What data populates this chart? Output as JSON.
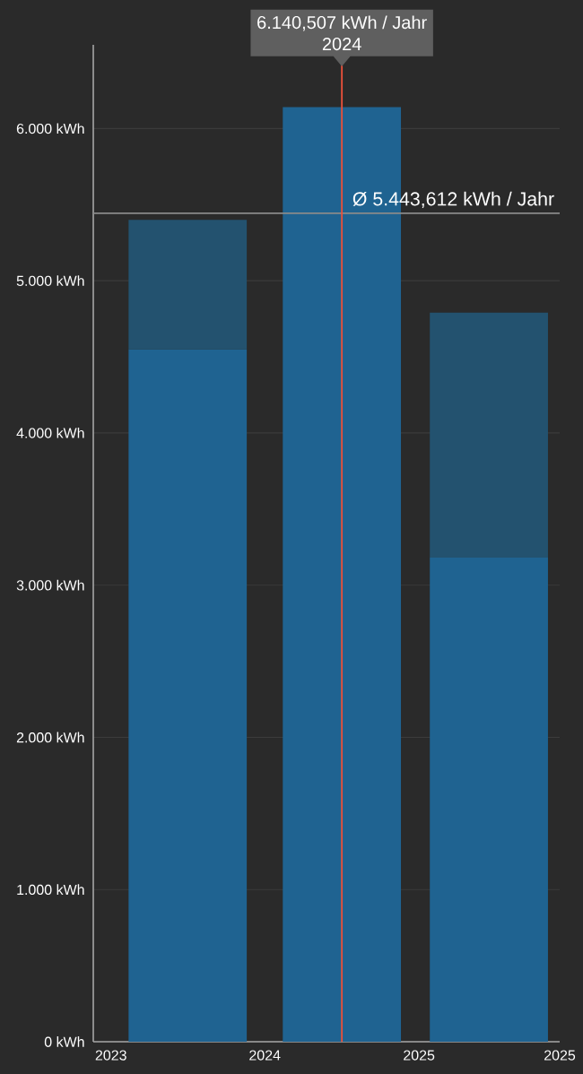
{
  "chart_data": {
    "type": "bar",
    "stacked": true,
    "x": [
      "2023-07-02",
      "2024-07-02",
      "2025-06-16"
    ],
    "series": [
      {
        "color": "#1f6391",
        "values": [
          4550,
          6140.507,
          3180
        ]
      },
      {
        "color": "#23526f",
        "values": [
          850,
          null,
          1610
        ]
      }
    ],
    "xlim": [
      "2022-11-20",
      "2025-12-01"
    ],
    "xticks": [
      {
        "value": "2023",
        "label": "2023"
      },
      {
        "value": "2024",
        "label": "2024"
      },
      {
        "value": "2025",
        "label": "2025"
      },
      {
        "value": "2025-12-01",
        "label": "2025"
      }
    ],
    "ylim": [
      0,
      6550
    ],
    "yticks": [
      {
        "value": 0,
        "label": "0 kWh"
      },
      {
        "value": 1000,
        "label": "1.000 kWh"
      },
      {
        "value": 2000,
        "label": "2.000 kWh"
      },
      {
        "value": 3000,
        "label": "3.000 kWh"
      },
      {
        "value": 4000,
        "label": "4.000 kWh"
      },
      {
        "value": 5000,
        "label": "5.000 kWh"
      },
      {
        "value": 6000,
        "label": "6.000 kWh"
      }
    ],
    "grid": "y",
    "ref_lines": [
      {
        "axis": "y",
        "value": 5443.612,
        "label": "Ø 5.443,612 kWh / Jahr",
        "color": "#8a8a8a"
      },
      {
        "axis": "x",
        "value": "2024-07-02",
        "color": "#e8503a"
      }
    ],
    "annotations": [
      "6.140,507 kWh / Jahr",
      "2024"
    ]
  }
}
